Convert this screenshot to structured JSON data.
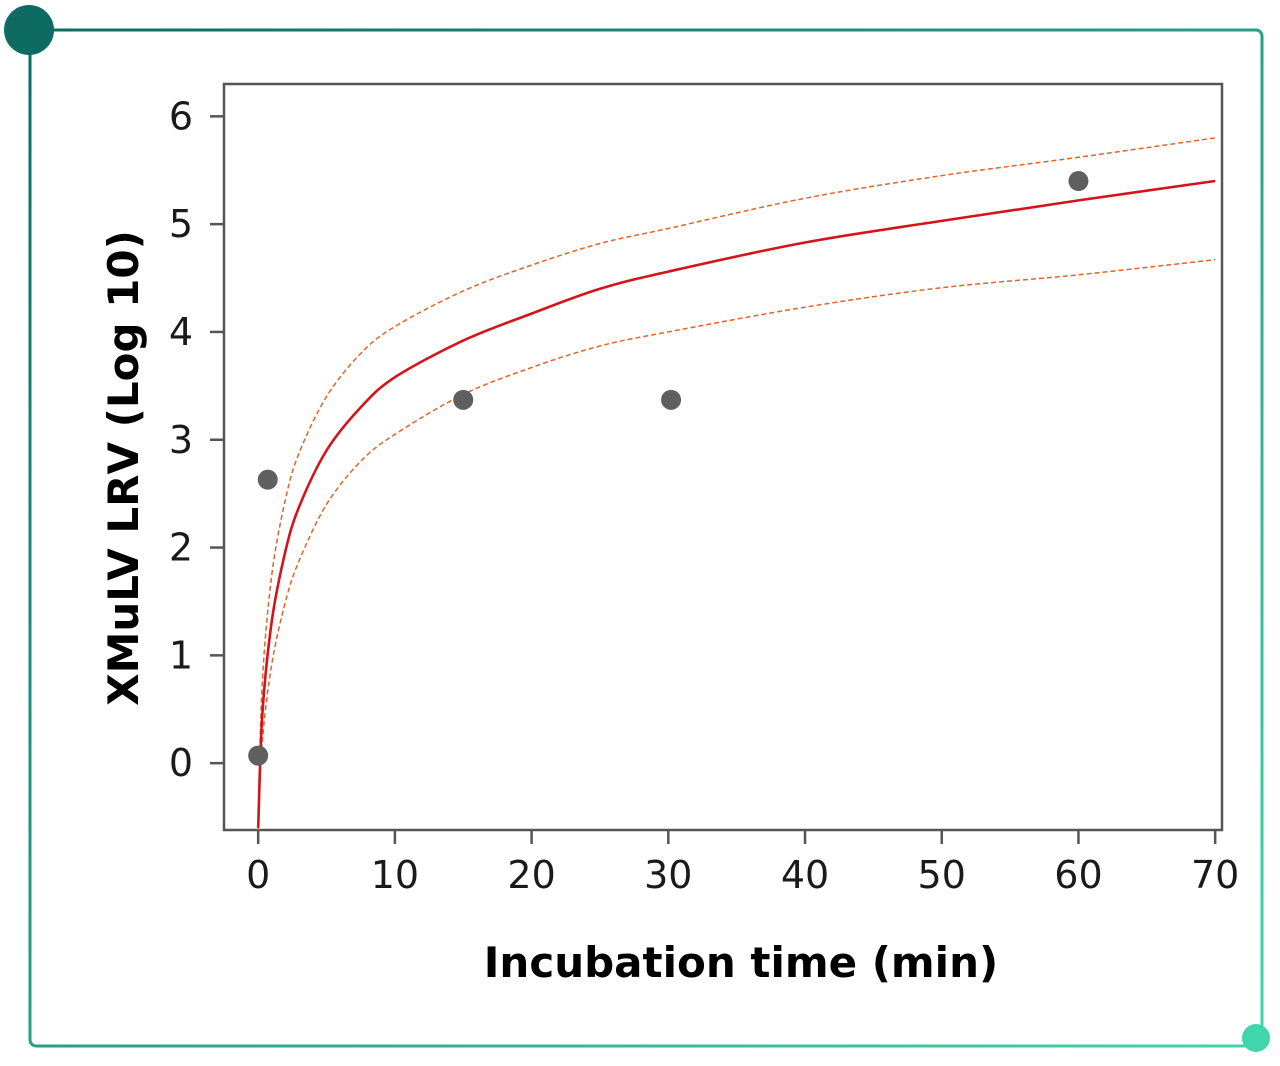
{
  "colors": {
    "frame_start": "#0d6b63",
    "frame_end": "#3fd6ac",
    "fit_line": "#d4141b",
    "ci_line": "#e0642b",
    "points": "#5f5f5f",
    "axis": "#555555"
  },
  "chart_data": {
    "type": "scatter",
    "title": "",
    "xlabel": "Incubation time (min)",
    "ylabel": "XMuLV LRV (Log 10)",
    "xlim": [
      -2.5,
      70.5
    ],
    "ylim": [
      -0.62,
      6.3
    ],
    "xticks": [
      0,
      10,
      20,
      30,
      40,
      50,
      60,
      70
    ],
    "yticks": [
      0,
      1,
      2,
      3,
      4,
      5,
      6
    ],
    "grid": false,
    "legend": "none",
    "points": [
      {
        "x": 0,
        "y": 0.07
      },
      {
        "x": 0.7,
        "y": 2.63
      },
      {
        "x": 15,
        "y": 3.37
      },
      {
        "x": 30.2,
        "y": 3.37
      },
      {
        "x": 60,
        "y": 5.4
      }
    ],
    "fit_curve": {
      "x": [
        0,
        0.3,
        1,
        2,
        3,
        5,
        7.5,
        10,
        15,
        20,
        25,
        30,
        40,
        50,
        60,
        70
      ],
      "y": [
        -0.6,
        0.45,
        1.32,
        1.97,
        2.38,
        2.9,
        3.3,
        3.58,
        3.92,
        4.17,
        4.4,
        4.56,
        4.83,
        5.03,
        5.22,
        5.4
      ]
    },
    "ci_upper": {
      "x": [
        0,
        0.3,
        1,
        2,
        3,
        5,
        7.5,
        10,
        15,
        20,
        25,
        30,
        40,
        50,
        60,
        70
      ],
      "y": [
        -0.55,
        0.75,
        1.75,
        2.45,
        2.88,
        3.4,
        3.8,
        4.05,
        4.38,
        4.62,
        4.82,
        4.96,
        5.24,
        5.45,
        5.62,
        5.8
      ]
    },
    "ci_lower": {
      "x": [
        0,
        0.3,
        1,
        2,
        3,
        5,
        7.5,
        10,
        15,
        20,
        25,
        30,
        40,
        50,
        60,
        70
      ],
      "y": [
        -0.62,
        0.2,
        0.92,
        1.5,
        1.88,
        2.4,
        2.8,
        3.05,
        3.42,
        3.67,
        3.87,
        4.0,
        4.23,
        4.41,
        4.53,
        4.67
      ]
    }
  }
}
